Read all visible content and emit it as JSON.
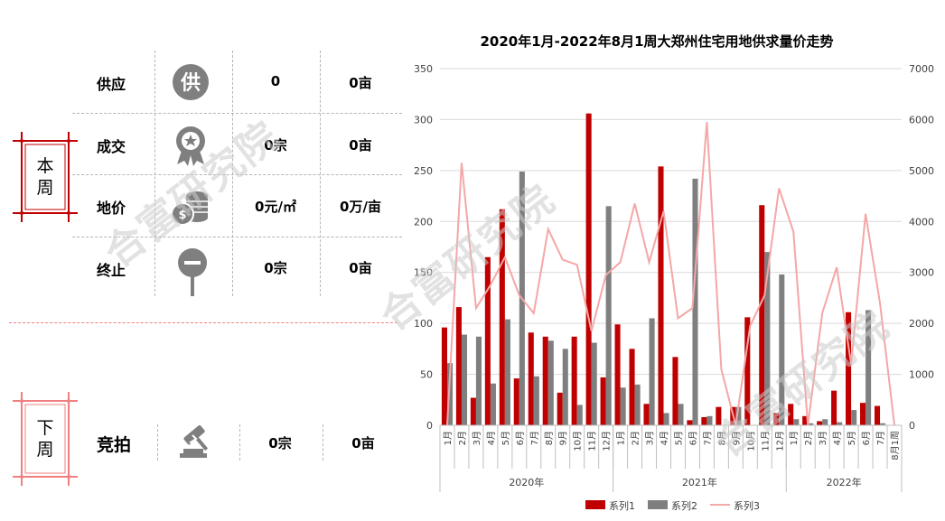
{
  "this_week": {
    "tag": "本周",
    "rows": [
      {
        "label": "供应",
        "icon": "supply-icon",
        "icon_char": "供",
        "v1": "0",
        "v2": "0亩"
      },
      {
        "label": "成交",
        "icon": "award-ribbon-icon",
        "v1": "0宗",
        "v2": "0亩"
      },
      {
        "label": "地价",
        "icon": "coins-icon",
        "v1": "0元/㎡",
        "v2": "0万/亩"
      },
      {
        "label": "终止",
        "icon": "stop-sign-icon",
        "v1": "0宗",
        "v2": "0亩"
      }
    ]
  },
  "next_week": {
    "tag": "下周",
    "rows": [
      {
        "label": "竞拍",
        "icon": "auction-gavel-icon",
        "v1": "0宗",
        "v2": "0亩"
      }
    ]
  },
  "watermark": "合富研究院",
  "colors": {
    "red": "#c00000",
    "gray": "#7f7f7f",
    "pink": "#f4a7a7",
    "tag_red": "#c00000",
    "tag_pink": "#f08080"
  },
  "chart_data": {
    "type": "bar",
    "title": "2020年1月-2022年8月1周大郑州住宅用地供求量价走势",
    "categories": [
      "1月",
      "2月",
      "3月",
      "4月",
      "5月",
      "6月",
      "7月",
      "8月",
      "9月",
      "10月",
      "11月",
      "12月",
      "1月",
      "2月",
      "3月",
      "4月",
      "5月",
      "6月",
      "7月",
      "8月",
      "9月",
      "10月",
      "11月",
      "12月",
      "1月",
      "2月",
      "3月",
      "4月",
      "5月",
      "6月",
      "7月",
      "8月1周"
    ],
    "groups": [
      {
        "label": "2020年",
        "count": 12
      },
      {
        "label": "2021年",
        "count": 12
      },
      {
        "label": "2022年",
        "count": 8
      }
    ],
    "series": [
      {
        "name": "系列1",
        "type": "bar",
        "axis": "left",
        "color": "#c00000",
        "values": [
          96,
          116,
          27,
          165,
          212,
          46,
          91,
          87,
          32,
          87,
          306,
          47,
          99,
          75,
          21,
          254,
          67,
          5,
          8,
          18,
          18,
          106,
          216,
          12,
          21,
          9,
          4,
          34,
          111,
          22,
          19,
          0
        ]
      },
      {
        "name": "系列2",
        "type": "bar",
        "axis": "left",
        "color": "#7f7f7f",
        "values": [
          61,
          89,
          87,
          41,
          104,
          249,
          48,
          83,
          75,
          20,
          81,
          215,
          37,
          40,
          105,
          12,
          21,
          242,
          9,
          0,
          18,
          0,
          170,
          148,
          6,
          2,
          6,
          3,
          15,
          113,
          2,
          0
        ]
      },
      {
        "name": "系列3",
        "type": "line",
        "axis": "right",
        "color": "#f4a7a7",
        "values": [
          0,
          5150,
          2300,
          2750,
          3300,
          2550,
          2200,
          3850,
          3250,
          3150,
          1850,
          2950,
          3200,
          4350,
          3200,
          4200,
          2100,
          2300,
          5950,
          1100,
          0,
          1950,
          2550,
          4650,
          3800,
          0,
          2200,
          3100,
          1200,
          4150,
          2400,
          0
        ]
      }
    ],
    "y_left": {
      "min": 0,
      "max": 350,
      "ticks": [
        0,
        50,
        100,
        150,
        200,
        250,
        300,
        350
      ]
    },
    "y_right": {
      "min": 0,
      "max": 7000,
      "ticks": [
        0,
        1000,
        2000,
        3000,
        4000,
        5000,
        6000,
        7000
      ]
    },
    "legend": {
      "position": "bottom",
      "items": [
        "系列1",
        "系列2",
        "系列3"
      ]
    },
    "grid": true
  }
}
